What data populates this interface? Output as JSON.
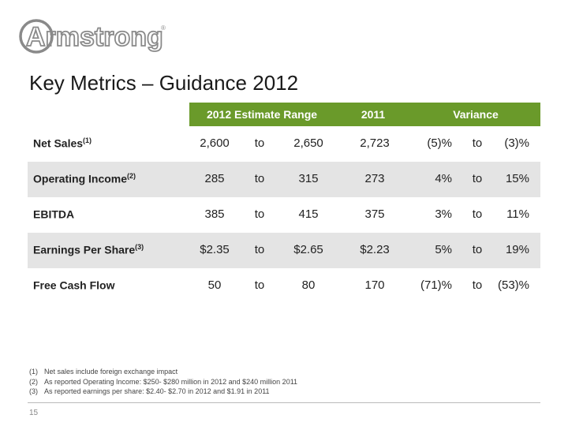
{
  "brand": {
    "logo_text": "Armstrong"
  },
  "slide": {
    "title": "Key Metrics – Guidance 2012",
    "page_number": "15"
  },
  "table": {
    "headers": {
      "estimate_range": "2012 Estimate Range",
      "year": "2011",
      "variance": "Variance"
    },
    "rows": [
      {
        "label": "Net Sales",
        "sup": "(1)",
        "low": "2,600",
        "to1": "to",
        "high": "2,650",
        "prior": "2,723",
        "var_low": "(5)%",
        "to2": "to",
        "var_high": "(3)%"
      },
      {
        "label": "Operating Income",
        "sup": "(2)",
        "low": "285",
        "to1": "to",
        "high": "315",
        "prior": "273",
        "var_low": "4%",
        "to2": "to",
        "var_high": "15%"
      },
      {
        "label": "EBITDA",
        "sup": "",
        "low": "385",
        "to1": "to",
        "high": "415",
        "prior": "375",
        "var_low": "3%",
        "to2": "to",
        "var_high": "11%"
      },
      {
        "label": "Earnings Per Share",
        "sup": "(3)",
        "low": "$2.35",
        "to1": "to",
        "high": "$2.65",
        "prior": "$2.23",
        "var_low": "5%",
        "to2": "to",
        "var_high": "19%"
      },
      {
        "label": "Free Cash Flow",
        "sup": "",
        "low": "50",
        "to1": "to",
        "high": "80",
        "prior": "170",
        "var_low": "(71)%",
        "to2": "to",
        "var_high": "(53)%"
      }
    ]
  },
  "footnotes": [
    {
      "num": "(1)",
      "text": "Net sales include foreign exchange impact"
    },
    {
      "num": "(2)",
      "text": "As reported Operating Income: $250- $280 million in 2012 and $240 million 2011"
    },
    {
      "num": "(3)",
      "text": "As reported earnings per share: $2.40- $2.70 in 2012 and $1.91 in 2011"
    }
  ],
  "colors": {
    "header_green": "#6a9a2a",
    "row_shade": "#e4e4e4",
    "logo_gray": "#8a8a8a"
  }
}
